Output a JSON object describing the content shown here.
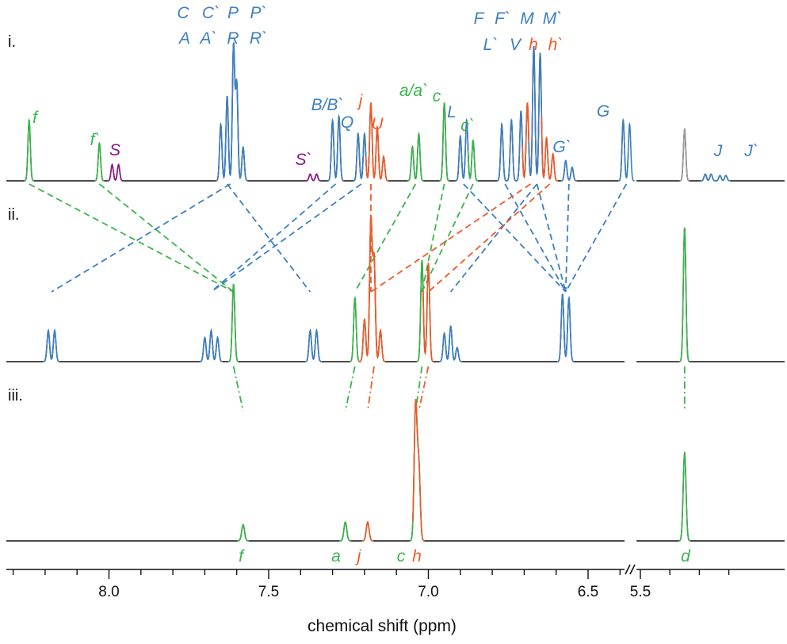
{
  "colors": {
    "blue": "#3d7fc0",
    "green": "#39b54a",
    "orange": "#f05a28",
    "purple": "#8b1a89",
    "gray": "#9a9a9a",
    "black": "#111111"
  },
  "chart_data": {
    "type": "line",
    "xlabel": "chemical shift (ppm)",
    "x_reversed": true,
    "axis_break": true,
    "xlim_main": [
      8.3,
      6.3
    ],
    "xlim_right": [
      5.5,
      5.2
    ],
    "ticks": [
      {
        "value": 8.0,
        "label": "8.0"
      },
      {
        "value": 7.5,
        "label": "7.5"
      },
      {
        "value": 7.0,
        "label": "7.0"
      },
      {
        "value": 6.5,
        "label": "6.5"
      },
      {
        "value": 5.5,
        "label": "5.5"
      }
    ],
    "spectra": [
      {
        "label": "i.",
        "peaks": [
          {
            "ppm": 8.25,
            "h": 0.45,
            "color": "green"
          },
          {
            "ppm": 8.03,
            "h": 0.28,
            "color": "green"
          },
          {
            "ppm": 7.99,
            "h": 0.12,
            "color": "purple"
          },
          {
            "ppm": 7.97,
            "h": 0.12,
            "color": "purple"
          },
          {
            "ppm": 7.65,
            "h": 0.42,
            "color": "blue"
          },
          {
            "ppm": 7.63,
            "h": 0.63,
            "color": "blue"
          },
          {
            "ppm": 7.61,
            "h": 1.0,
            "color": "blue"
          },
          {
            "ppm": 7.6,
            "h": 0.72,
            "color": "blue"
          },
          {
            "ppm": 7.58,
            "h": 0.25,
            "color": "blue"
          },
          {
            "ppm": 7.37,
            "h": 0.05,
            "color": "purple"
          },
          {
            "ppm": 7.35,
            "h": 0.05,
            "color": "purple"
          },
          {
            "ppm": 7.3,
            "h": 0.45,
            "color": "blue"
          },
          {
            "ppm": 7.28,
            "h": 0.48,
            "color": "blue"
          },
          {
            "ppm": 7.22,
            "h": 0.35,
            "color": "blue"
          },
          {
            "ppm": 7.2,
            "h": 0.35,
            "color": "blue"
          },
          {
            "ppm": 7.18,
            "h": 0.58,
            "color": "orange"
          },
          {
            "ppm": 7.16,
            "h": 0.4,
            "color": "orange"
          },
          {
            "ppm": 7.14,
            "h": 0.18,
            "color": "orange"
          },
          {
            "ppm": 7.05,
            "h": 0.25,
            "color": "green"
          },
          {
            "ppm": 7.03,
            "h": 0.35,
            "color": "green"
          },
          {
            "ppm": 6.95,
            "h": 0.58,
            "color": "green"
          },
          {
            "ppm": 6.9,
            "h": 0.33,
            "color": "blue"
          },
          {
            "ppm": 6.88,
            "h": 0.45,
            "color": "blue"
          },
          {
            "ppm": 6.86,
            "h": 0.3,
            "color": "green"
          },
          {
            "ppm": 6.77,
            "h": 0.42,
            "color": "blue"
          },
          {
            "ppm": 6.74,
            "h": 0.45,
            "color": "blue"
          },
          {
            "ppm": 6.71,
            "h": 0.52,
            "color": "blue"
          },
          {
            "ppm": 6.69,
            "h": 0.58,
            "color": "orange"
          },
          {
            "ppm": 6.67,
            "h": 1.0,
            "color": "blue"
          },
          {
            "ppm": 6.65,
            "h": 0.95,
            "color": "blue"
          },
          {
            "ppm": 6.63,
            "h": 0.32,
            "color": "orange"
          },
          {
            "ppm": 6.61,
            "h": 0.2,
            "color": "orange"
          },
          {
            "ppm": 6.57,
            "h": 0.15,
            "color": "blue"
          },
          {
            "ppm": 6.55,
            "h": 0.1,
            "color": "blue"
          },
          {
            "ppm": 6.39,
            "h": 0.45,
            "color": "blue"
          },
          {
            "ppm": 6.37,
            "h": 0.42,
            "color": "blue"
          },
          {
            "ppm": 5.35,
            "h": 0.38,
            "color": "gray"
          },
          {
            "ppm": 5.28,
            "h": 0.05,
            "color": "blue"
          },
          {
            "ppm": 5.26,
            "h": 0.05,
            "color": "blue"
          },
          {
            "ppm": 5.23,
            "h": 0.04,
            "color": "blue"
          },
          {
            "ppm": 5.21,
            "h": 0.04,
            "color": "blue"
          }
        ],
        "annotations": [
          {
            "text": "C",
            "color": "blue"
          },
          {
            "text": "C`",
            "color": "blue"
          },
          {
            "text": "P",
            "color": "blue"
          },
          {
            "text": "P`",
            "color": "blue"
          },
          {
            "text": "A",
            "color": "blue"
          },
          {
            "text": "A`",
            "color": "blue"
          },
          {
            "text": "R",
            "color": "blue"
          },
          {
            "text": "R`",
            "color": "blue"
          },
          {
            "text": "f",
            "color": "green"
          },
          {
            "text": "f`",
            "color": "green"
          },
          {
            "text": "S",
            "color": "purple"
          },
          {
            "text": "S`",
            "color": "purple"
          },
          {
            "text": "B/B`",
            "color": "blue"
          },
          {
            "text": "Q",
            "color": "blue"
          },
          {
            "text": "j",
            "color": "orange"
          },
          {
            "text": "U",
            "color": "orange"
          },
          {
            "text": "a/a`",
            "color": "green"
          },
          {
            "text": "c",
            "color": "green"
          },
          {
            "text": "L",
            "color": "blue"
          },
          {
            "text": "c`",
            "color": "green"
          },
          {
            "text": "F",
            "color": "blue"
          },
          {
            "text": "F`",
            "color": "blue"
          },
          {
            "text": "M",
            "color": "blue"
          },
          {
            "text": "M`",
            "color": "blue"
          },
          {
            "text": "L`",
            "color": "blue"
          },
          {
            "text": "V",
            "color": "blue"
          },
          {
            "text": "h",
            "color": "orange"
          },
          {
            "text": "h`",
            "color": "orange"
          },
          {
            "text": "G`",
            "color": "blue"
          },
          {
            "text": "G",
            "color": "blue"
          },
          {
            "text": "J",
            "color": "blue"
          },
          {
            "text": "J`",
            "color": "blue"
          }
        ]
      },
      {
        "label": "ii.",
        "peaks": [
          {
            "ppm": 8.19,
            "h": 0.22,
            "color": "blue"
          },
          {
            "ppm": 8.17,
            "h": 0.22,
            "color": "blue"
          },
          {
            "ppm": 7.7,
            "h": 0.17,
            "color": "blue"
          },
          {
            "ppm": 7.68,
            "h": 0.22,
            "color": "blue"
          },
          {
            "ppm": 7.66,
            "h": 0.17,
            "color": "blue"
          },
          {
            "ppm": 7.61,
            "h": 0.55,
            "color": "green"
          },
          {
            "ppm": 7.37,
            "h": 0.22,
            "color": "blue"
          },
          {
            "ppm": 7.35,
            "h": 0.22,
            "color": "blue"
          },
          {
            "ppm": 7.23,
            "h": 0.45,
            "color": "green"
          },
          {
            "ppm": 7.2,
            "h": 0.3,
            "color": "orange"
          },
          {
            "ppm": 7.18,
            "h": 1.0,
            "color": "orange"
          },
          {
            "ppm": 7.17,
            "h": 0.72,
            "color": "orange"
          },
          {
            "ppm": 7.15,
            "h": 0.22,
            "color": "orange"
          },
          {
            "ppm": 7.02,
            "h": 0.72,
            "color": "green"
          },
          {
            "ppm": 7.0,
            "h": 0.7,
            "color": "orange"
          },
          {
            "ppm": 6.95,
            "h": 0.2,
            "color": "blue"
          },
          {
            "ppm": 6.93,
            "h": 0.25,
            "color": "blue"
          },
          {
            "ppm": 6.91,
            "h": 0.1,
            "color": "blue"
          },
          {
            "ppm": 6.58,
            "h": 0.48,
            "color": "blue"
          },
          {
            "ppm": 6.56,
            "h": 0.45,
            "color": "blue"
          },
          {
            "ppm": 5.35,
            "h": 0.95,
            "color": "green"
          }
        ]
      },
      {
        "label": "iii.",
        "peaks": [
          {
            "ppm": 7.58,
            "h": 0.12,
            "color": "green"
          },
          {
            "ppm": 7.26,
            "h": 0.14,
            "color": "green"
          },
          {
            "ppm": 7.19,
            "h": 0.14,
            "color": "orange"
          },
          {
            "ppm": 7.04,
            "h": 1.0,
            "color": "green"
          },
          {
            "ppm": 7.03,
            "h": 0.55,
            "color": "orange"
          },
          {
            "ppm": 5.35,
            "h": 0.65,
            "color": "green"
          }
        ],
        "annotations": [
          {
            "text": "f",
            "color": "green"
          },
          {
            "text": "a",
            "color": "green"
          },
          {
            "text": "j",
            "color": "orange"
          },
          {
            "text": "c",
            "color": "green"
          },
          {
            "text": "h",
            "color": "orange"
          },
          {
            "text": "d",
            "color": "green"
          }
        ]
      }
    ],
    "correlations_i_to_ii": [
      {
        "from": 8.25,
        "to": 7.61,
        "color": "green"
      },
      {
        "from": 8.03,
        "to": 7.61,
        "color": "green"
      },
      {
        "from": 7.63,
        "to": 7.37,
        "color": "blue"
      },
      {
        "from": 7.62,
        "to": 8.18,
        "color": "blue"
      },
      {
        "from": 7.29,
        "to": 7.68,
        "color": "blue"
      },
      {
        "from": 7.21,
        "to": 7.68,
        "color": "blue"
      },
      {
        "from": 7.18,
        "to": 7.18,
        "color": "orange"
      },
      {
        "from": 7.04,
        "to": 7.23,
        "color": "green"
      },
      {
        "from": 6.95,
        "to": 7.02,
        "color": "green"
      },
      {
        "from": 6.86,
        "to": 7.02,
        "color": "green"
      },
      {
        "from": 6.89,
        "to": 6.57,
        "color": "blue"
      },
      {
        "from": 6.76,
        "to": 6.57,
        "color": "blue"
      },
      {
        "from": 6.66,
        "to": 6.57,
        "color": "blue"
      },
      {
        "from": 6.56,
        "to": 6.57,
        "color": "blue"
      },
      {
        "from": 6.38,
        "to": 6.57,
        "color": "blue"
      },
      {
        "from": 6.66,
        "to": 6.93,
        "color": "blue"
      },
      {
        "from": 6.68,
        "to": 7.18,
        "color": "orange"
      },
      {
        "from": 6.62,
        "to": 7.0,
        "color": "orange"
      }
    ],
    "correlations_ii_to_iii": [
      {
        "from": 7.61,
        "to": 7.58,
        "color": "green"
      },
      {
        "from": 7.23,
        "to": 7.26,
        "color": "green"
      },
      {
        "from": 7.17,
        "to": 7.19,
        "color": "orange"
      },
      {
        "from": 7.02,
        "to": 7.04,
        "color": "green"
      },
      {
        "from": 7.0,
        "to": 7.03,
        "color": "orange"
      },
      {
        "from": 5.35,
        "to": 5.35,
        "color": "green"
      }
    ]
  }
}
